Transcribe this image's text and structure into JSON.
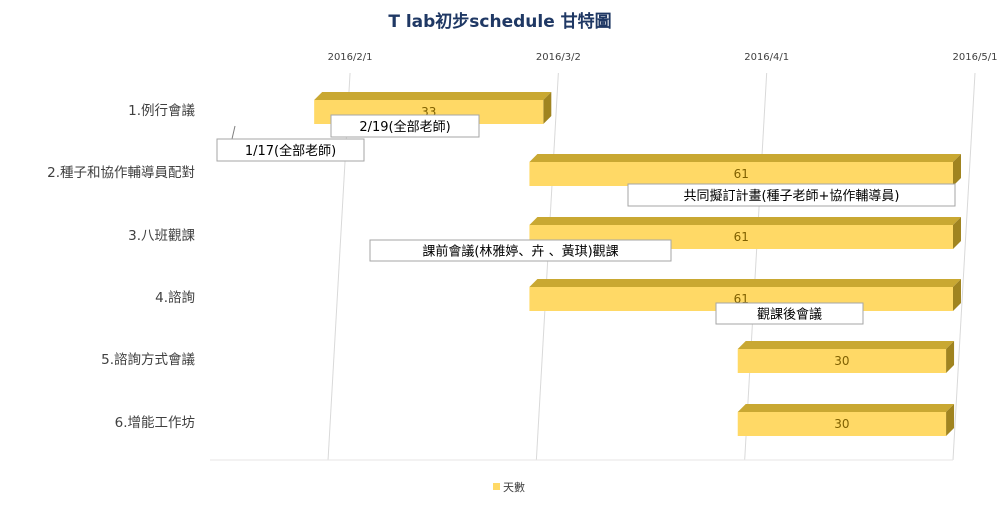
{
  "chart_data": {
    "type": "bar",
    "orientation": "horizontal",
    "stacked": true,
    "three_d": true,
    "title": "T lab初步schedule 甘特圖",
    "x_axis": {
      "type": "date",
      "position": "top",
      "range": [
        "2016/1/15",
        "2016/5/1"
      ],
      "ticks": [
        "2016/2/1",
        "2016/3/2",
        "2016/4/1",
        "2016/5/1"
      ],
      "grid": true
    },
    "categories": [
      "1.例行會議",
      "2.種子和協作輔導員配對",
      "3.八班觀課",
      "4.諮詢",
      "5.諮詢方式會議",
      "6.增能工作坊"
    ],
    "start_dates": [
      "2016/1/30",
      "2016/3/1",
      "2016/3/1",
      "2016/3/1",
      "2016/3/31",
      "2016/3/31"
    ],
    "series": [
      {
        "name": "天數",
        "values": [
          33,
          61,
          61,
          61,
          30,
          30
        ],
        "color": "#ffd966",
        "data_labels": true
      }
    ],
    "legend": {
      "position": "bottom",
      "entries": [
        "天數"
      ]
    },
    "annotations": [
      {
        "text": "2/19(全部老師)",
        "category": "1.例行會議"
      },
      {
        "text": "1/17(全部老師)",
        "category": "1.例行會議"
      },
      {
        "text": "共同擬訂計畫(種子老師+協作輔導員)",
        "category": "2.種子和協作輔導員配對"
      },
      {
        "text": "課前會議(林雅婷、卉 、黃琪)觀課",
        "category": "3.八班觀課"
      },
      {
        "text": "觀課後會議",
        "category": "4.諮詢"
      }
    ]
  }
}
